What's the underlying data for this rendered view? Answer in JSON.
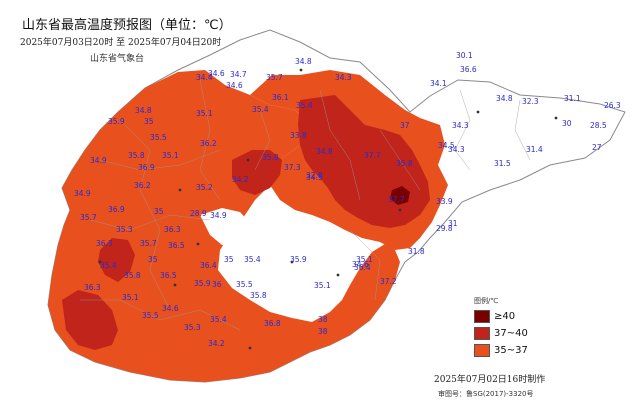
{
  "map": {
    "title": "山东省最高温度预报图（单位：℃）",
    "period": "2025年07月03日20时 至 2025年07月04日20时",
    "publisher": "山东省气象台",
    "issued": "2025年07月02日16时制作",
    "approval": "审图号：鲁SG(2017)-3320号",
    "legend": {
      "title": "图例/℃",
      "items": [
        {
          "label": "≥40",
          "color": "#7a0000"
        },
        {
          "label": "37~40",
          "color": "#c0241a"
        },
        {
          "label": "35~37",
          "color": "#e8501e"
        }
      ]
    },
    "colors": {
      "land": "#ffffff",
      "boundary": "#9a9a9a",
      "value_text": "#2b2bd0"
    },
    "values": [
      "30.1",
      "34.8",
      "36.6",
      "34.4",
      "34.6",
      "34.7",
      "35.7",
      "34.3",
      "34.1",
      "34.6",
      "34.8",
      "32.3",
      "31.1",
      "26.3",
      "34.8",
      "35.1",
      "36.1",
      "35.4",
      "35.4",
      "37",
      "30",
      "28.5",
      "35.9",
      "35",
      "35.5",
      "34.5",
      "31.4",
      "27",
      "34.9",
      "35.8",
      "35.1",
      "37.7",
      "33.8",
      "36.2",
      "35.8",
      "34.3",
      "31.5",
      "37.7",
      "35.8",
      "34.8",
      "36.9",
      "32.8",
      "33.9",
      "28.9",
      "34.9",
      "34.5",
      "31",
      "37.3",
      "29.8",
      "34.9",
      "36.2",
      "34.2",
      "34.3",
      "31.8",
      "35.7",
      "36.9",
      "35",
      "35.2",
      "35.3",
      "36.3",
      "35",
      "37.2",
      "36.3",
      "35.7",
      "36.5",
      "35.4",
      "36.4",
      "35.9",
      "35",
      "35.4",
      "35.8",
      "36.5",
      "35.9",
      "36.3",
      "35.1",
      "36",
      "35.5",
      "35.8",
      "35.1",
      "35.1",
      "34.6",
      "34.6",
      "35.5",
      "35.3",
      "35.4",
      "38",
      "36.4",
      "34.2",
      "36.8",
      "38"
    ]
  }
}
